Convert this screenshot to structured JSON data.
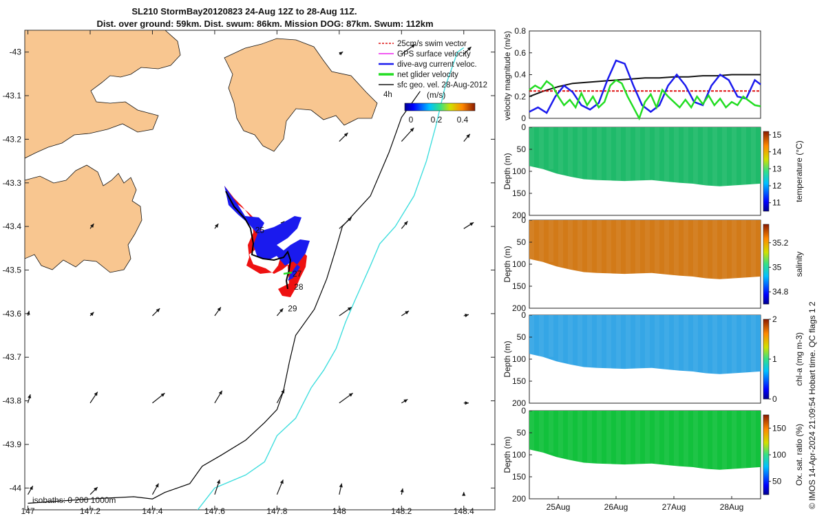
{
  "title_line1": "SL210 StormBay20120823 24-Aug 12Z to 28-Aug 11Z.",
  "title_line2": "Dist. over ground: 59km. Dist. swum: 86km. Mission DOG: 87km. Swum: 112km",
  "side_label": "© IMOS 14-Apr-2024 21:09:54 Hobart time. QC flags 1  2",
  "colors": {
    "land": "#f8c690",
    "track_red": "#ee1111",
    "track_blue": "#1a1aee",
    "isobath_200": "#000000",
    "isobath_1000": "#3fdede",
    "speed": "#1a1aee",
    "glider_net": "#22dd22",
    "sfc_geo": "#111111",
    "swim": "#dd1111"
  },
  "chart_data": [
    {
      "id": "map",
      "type": "scatter",
      "title": "",
      "xlabel": "",
      "ylabel": "",
      "xlim": [
        146.99,
        148.5
      ],
      "ylim": [
        -44.05,
        -42.95
      ],
      "x_ticks": [
        "147",
        "147.2",
        "147.4",
        "147.6",
        "147.8",
        "148",
        "148.2",
        "148.4"
      ],
      "y_ticks": [
        "-43",
        "-43.1",
        "-43.2",
        "-43.3",
        "-43.4",
        "-43.5",
        "-43.6",
        "-43.7",
        "-43.8",
        "-43.9",
        "-44"
      ],
      "legend": {
        "placement": "top-right",
        "items": [
          {
            "label": "25cm/s swim vector",
            "color": "#dd1111"
          },
          {
            "label": "GPS surface velocity",
            "color": "#ee22ee"
          },
          {
            "label": "dive-avg current veloc.",
            "color": "#1a1aee"
          },
          {
            "label": "net glider velocity",
            "color": "#22dd22"
          },
          {
            "label": "sfc geo. vel. 28-Aug-2012",
            "color": "#111111"
          }
        ],
        "time_label": "4h"
      },
      "colorbar": {
        "label": "(m/s)",
        "ticks": [
          "0",
          "0.2",
          "0.4"
        ],
        "range": [
          0,
          0.5
        ]
      },
      "isobath_label": "isobaths: 0   200  1000m",
      "day_labels": [
        {
          "text": "25",
          "lon": 147.73,
          "lat": -43.415
        },
        {
          "text": "27",
          "lon": 147.85,
          "lat": -43.515
        },
        {
          "text": "28",
          "lon": 147.855,
          "lat": -43.545
        },
        {
          "text": "29",
          "lon": 147.835,
          "lat": -43.595
        }
      ],
      "isobath_200m": [
        [
          147.0,
          -44.035
        ],
        [
          147.2,
          -44.025
        ],
        [
          147.34,
          -44.02
        ],
        [
          147.4,
          -44.025
        ],
        [
          147.44,
          -44.01
        ],
        [
          147.52,
          -43.99
        ],
        [
          147.56,
          -43.95
        ],
        [
          147.62,
          -43.925
        ],
        [
          147.7,
          -43.89
        ],
        [
          147.76,
          -43.85
        ],
        [
          147.8,
          -43.82
        ],
        [
          147.82,
          -43.78
        ],
        [
          147.84,
          -43.71
        ],
        [
          147.86,
          -43.65
        ],
        [
          147.92,
          -43.59
        ],
        [
          147.96,
          -43.52
        ],
        [
          147.99,
          -43.45
        ],
        [
          148.01,
          -43.4
        ],
        [
          148.1,
          -43.33
        ],
        [
          148.16,
          -43.23
        ],
        [
          148.2,
          -43.15
        ],
        [
          148.24,
          -43.11
        ],
        [
          148.26,
          -43.09
        ]
      ],
      "isobath_1000m": [
        [
          147.5,
          -44.07
        ],
        [
          147.54,
          -44.055
        ],
        [
          147.6,
          -44.0
        ],
        [
          147.7,
          -43.97
        ],
        [
          147.76,
          -43.94
        ],
        [
          147.8,
          -43.88
        ],
        [
          147.86,
          -43.84
        ],
        [
          147.91,
          -43.77
        ],
        [
          147.95,
          -43.73
        ],
        [
          147.99,
          -43.68
        ],
        [
          148.02,
          -43.62
        ],
        [
          148.05,
          -43.57
        ],
        [
          148.1,
          -43.49
        ],
        [
          148.13,
          -43.44
        ],
        [
          148.18,
          -43.4
        ],
        [
          148.24,
          -43.33
        ],
        [
          148.28,
          -43.25
        ],
        [
          148.31,
          -43.17
        ],
        [
          148.34,
          -43.08
        ],
        [
          148.38,
          -43.0
        ],
        [
          148.4,
          -42.99
        ]
      ],
      "geo_vectors": [
        {
          "lon": 147.0,
          "lat": -43.605,
          "u": 0.01,
          "v": 0.04
        },
        {
          "lon": 147.2,
          "lat": -43.605,
          "u": 0.03,
          "v": 0.03
        },
        {
          "lon": 147.4,
          "lat": -43.605,
          "u": 0.06,
          "v": 0.06
        },
        {
          "lon": 147.6,
          "lat": -43.605,
          "u": 0.05,
          "v": 0.07
        },
        {
          "lon": 147.8,
          "lat": -43.605,
          "u": 0.05,
          "v": 0.06
        },
        {
          "lon": 148.0,
          "lat": -43.605,
          "u": 0.1,
          "v": 0.07
        },
        {
          "lon": 148.2,
          "lat": -43.605,
          "u": 0.06,
          "v": 0.04
        },
        {
          "lon": 148.4,
          "lat": -43.605,
          "u": 0.04,
          "v": 0.01
        },
        {
          "lon": 147.0,
          "lat": -43.805,
          "u": 0.02,
          "v": 0.07
        },
        {
          "lon": 147.2,
          "lat": -43.805,
          "u": 0.06,
          "v": 0.09
        },
        {
          "lon": 147.4,
          "lat": -43.805,
          "u": 0.1,
          "v": 0.08
        },
        {
          "lon": 147.6,
          "lat": -43.805,
          "u": 0.06,
          "v": 0.1
        },
        {
          "lon": 147.8,
          "lat": -43.805,
          "u": 0.06,
          "v": 0.11
        },
        {
          "lon": 148.0,
          "lat": -43.805,
          "u": 0.11,
          "v": 0.08
        },
        {
          "lon": 148.2,
          "lat": -43.805,
          "u": 0.05,
          "v": 0.03
        },
        {
          "lon": 148.4,
          "lat": -43.805,
          "u": 0.04,
          "v": 0.0
        },
        {
          "lon": 147.0,
          "lat": -44.015,
          "u": 0.04,
          "v": 0.07
        },
        {
          "lon": 147.2,
          "lat": -44.015,
          "u": 0.06,
          "v": 0.06
        },
        {
          "lon": 147.4,
          "lat": -44.015,
          "u": 0.05,
          "v": 0.09
        },
        {
          "lon": 147.6,
          "lat": -44.015,
          "u": 0.04,
          "v": 0.12
        },
        {
          "lon": 147.8,
          "lat": -44.015,
          "u": 0.05,
          "v": 0.12
        },
        {
          "lon": 148.0,
          "lat": -44.015,
          "u": 0.02,
          "v": 0.09
        },
        {
          "lon": 148.2,
          "lat": -44.015,
          "u": 0.01,
          "v": 0.05
        },
        {
          "lon": 148.4,
          "lat": -44.015,
          "u": 0.0,
          "v": 0.02
        },
        {
          "lon": 147.2,
          "lat": -43.405,
          "u": 0.03,
          "v": 0.04
        },
        {
          "lon": 147.6,
          "lat": -43.405,
          "u": 0.03,
          "v": 0.04
        },
        {
          "lon": 147.8,
          "lat": -43.405,
          "u": 0.06,
          "v": 0.06
        },
        {
          "lon": 148.0,
          "lat": -43.405,
          "u": 0.1,
          "v": 0.09
        },
        {
          "lon": 148.2,
          "lat": -43.405,
          "u": 0.05,
          "v": 0.06
        },
        {
          "lon": 148.4,
          "lat": -43.405,
          "u": 0.08,
          "v": 0.05
        },
        {
          "lon": 148.0,
          "lat": -43.205,
          "u": 0.07,
          "v": 0.07
        },
        {
          "lon": 148.2,
          "lat": -43.205,
          "u": 0.1,
          "v": 0.11
        },
        {
          "lon": 148.4,
          "lat": -43.205,
          "u": 0.05,
          "v": 0.06
        },
        {
          "lon": 148.2,
          "lat": -43.005,
          "u": 0.11,
          "v": 0.08
        },
        {
          "lon": 148.4,
          "lat": -43.005,
          "u": 0.06,
          "v": 0.06
        },
        {
          "lon": 148.0,
          "lat": -43.005,
          "u": 0.03,
          "v": 0.02
        }
      ]
    },
    {
      "id": "velocity",
      "type": "line",
      "title": "",
      "xlabel": "",
      "ylabel": "velocity magnitude (m/s)",
      "xlim": [
        0,
        4
      ],
      "ylim": [
        0,
        0.8
      ],
      "y_ticks": [
        "0",
        "0.2",
        "0.4",
        "0.6",
        "0.8"
      ],
      "series": [
        {
          "name": "sfc geo. vel.",
          "color": "#111111",
          "x": [
            0,
            0.25,
            0.5,
            0.75,
            1,
            1.25,
            1.5,
            1.75,
            2,
            2.25,
            2.5,
            2.75,
            3,
            3.25,
            3.5,
            3.75,
            4
          ],
          "y": [
            0.2,
            0.25,
            0.29,
            0.32,
            0.33,
            0.34,
            0.35,
            0.36,
            0.37,
            0.37,
            0.38,
            0.38,
            0.39,
            0.39,
            0.4,
            0.4,
            0.4
          ]
        },
        {
          "name": "25cm/s swim vector",
          "color": "#dd1111",
          "dashed": true,
          "x": [
            0,
            4
          ],
          "y": [
            0.25,
            0.25
          ]
        },
        {
          "name": "dive-avg current veloc.",
          "color": "#1a1aee",
          "x": [
            0,
            0.15,
            0.3,
            0.45,
            0.6,
            0.75,
            0.9,
            1.05,
            1.2,
            1.35,
            1.5,
            1.65,
            1.8,
            1.95,
            2.1,
            2.25,
            2.4,
            2.55,
            2.7,
            2.85,
            3.0,
            3.15,
            3.3,
            3.45,
            3.6,
            3.75,
            3.9,
            4.0
          ],
          "y": [
            0.06,
            0.1,
            0.05,
            0.2,
            0.3,
            0.24,
            0.12,
            0.08,
            0.14,
            0.35,
            0.53,
            0.5,
            0.3,
            0.12,
            0.06,
            0.12,
            0.3,
            0.4,
            0.3,
            0.15,
            0.12,
            0.3,
            0.4,
            0.35,
            0.2,
            0.18,
            0.35,
            0.31
          ]
        },
        {
          "name": "net glider velocity",
          "color": "#22dd22",
          "x": [
            0,
            0.1,
            0.2,
            0.3,
            0.4,
            0.5,
            0.6,
            0.7,
            0.8,
            0.9,
            1.0,
            1.1,
            1.2,
            1.3,
            1.4,
            1.5,
            1.6,
            1.7,
            1.8,
            1.9,
            2.0,
            2.1,
            2.2,
            2.3,
            2.4,
            2.5,
            2.6,
            2.7,
            2.8,
            2.9,
            3.0,
            3.1,
            3.2,
            3.3,
            3.4,
            3.5,
            3.6,
            3.7,
            3.8,
            3.9,
            4.0
          ],
          "y": [
            0.26,
            0.3,
            0.27,
            0.34,
            0.3,
            0.2,
            0.12,
            0.17,
            0.1,
            0.23,
            0.12,
            0.2,
            0.1,
            0.15,
            0.3,
            0.35,
            0.32,
            0.2,
            0.1,
            0.0,
            0.15,
            0.22,
            0.1,
            0.26,
            0.2,
            0.15,
            0.1,
            0.17,
            0.1,
            0.2,
            0.13,
            0.21,
            0.12,
            0.18,
            0.1,
            0.15,
            0.12,
            0.2,
            0.16,
            0.12,
            0.11
          ]
        }
      ]
    },
    {
      "id": "temperature",
      "type": "heatmap",
      "ylabel": "Depth (m)",
      "ylim": [
        200,
        0
      ],
      "y_ticks": [
        "0",
        "50",
        "100",
        "150",
        "200"
      ],
      "colorbar": {
        "label": "temperature (°C)",
        "range": [
          10.5,
          15.2
        ],
        "ticks": [
          "11",
          "12",
          "13",
          "14",
          "15"
        ]
      },
      "typical_value": 12.9,
      "bottom_depth_m": [
        88,
        95,
        105,
        112,
        118,
        120,
        121,
        122,
        121,
        120,
        123,
        126,
        128,
        132,
        134,
        132,
        130,
        128
      ],
      "fill_color": "#1fba6a"
    },
    {
      "id": "salinity",
      "type": "heatmap",
      "ylabel": "Depth (m)",
      "ylim": [
        200,
        0
      ],
      "y_ticks": [
        "0",
        "50",
        "100",
        "150",
        "200"
      ],
      "colorbar": {
        "label": "salinity",
        "range": [
          34.7,
          35.35
        ],
        "ticks": [
          "34.8",
          "35",
          "35.2"
        ]
      },
      "typical_value": 35.25,
      "bottom_depth_m": [
        88,
        95,
        105,
        112,
        118,
        120,
        121,
        122,
        121,
        120,
        123,
        126,
        128,
        132,
        134,
        132,
        130,
        128
      ],
      "fill_color": "#d27a18"
    },
    {
      "id": "chla",
      "type": "heatmap",
      "ylabel": "Depth (m)",
      "ylim": [
        200,
        0
      ],
      "y_ticks": [
        "0",
        "50",
        "100",
        "150",
        "200"
      ],
      "colorbar": {
        "label": "chl-a (mg m-3)",
        "range": [
          0,
          2
        ],
        "ticks": [
          "0",
          "1",
          "2"
        ]
      },
      "typical_value": 0.7,
      "bottom_depth_m": [
        88,
        95,
        105,
        112,
        118,
        120,
        121,
        122,
        121,
        120,
        123,
        126,
        128,
        132,
        134,
        132,
        130,
        128
      ],
      "fill_color": "#35a6e6"
    },
    {
      "id": "oxsat",
      "type": "heatmap",
      "ylabel": "Depth (m)",
      "ylim": [
        200,
        0
      ],
      "y_ticks": [
        "0",
        "50",
        "100",
        "150",
        "200"
      ],
      "x_ticks": [
        "25Aug",
        "26Aug",
        "27Aug",
        "28Aug"
      ],
      "colorbar": {
        "label": "Ox. sat. ratio (%)",
        "range": [
          25,
          175
        ],
        "ticks": [
          "50",
          "100",
          "150"
        ]
      },
      "typical_value": 100,
      "bottom_depth_m": [
        88,
        95,
        105,
        112,
        118,
        120,
        121,
        122,
        121,
        120,
        123,
        126,
        128,
        132,
        134,
        132,
        130,
        128
      ],
      "fill_color": "#12c13c"
    }
  ]
}
